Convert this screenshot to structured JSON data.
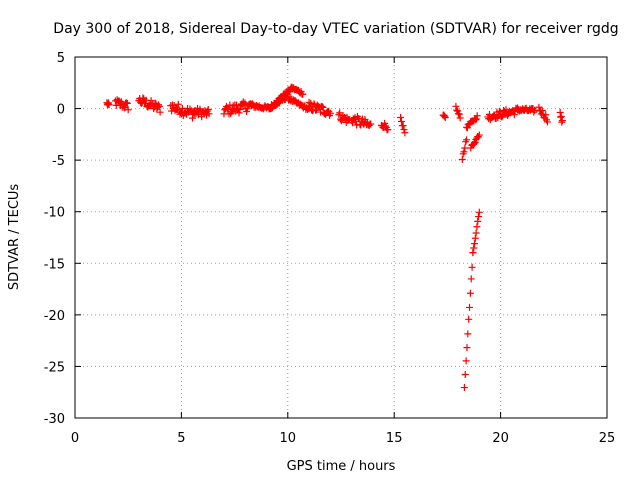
{
  "chart_data": {
    "type": "scatter",
    "title": "Day 300 of 2018, Sidereal Day-to-day VTEC variation (SDTVAR) for receiver rgdg",
    "xlabel": "GPS time / hours",
    "ylabel": "SDTVAR / TECUs",
    "xlim": [
      0,
      25
    ],
    "ylim": [
      -30,
      5
    ],
    "xticks": [
      0,
      5,
      10,
      15,
      20,
      25
    ],
    "yticks": [
      5,
      0,
      -5,
      -10,
      -15,
      -20,
      -25,
      -30
    ],
    "xtick_labels": [
      "0",
      "5",
      "10",
      "15",
      "20",
      "25"
    ],
    "ytick_labels": [
      "5",
      "0",
      "-5",
      "-10",
      "-15",
      "-20",
      "-25",
      "-30"
    ],
    "grid": true,
    "marker": "+",
    "marker_color": "#ff0000",
    "series": [
      {
        "name": "SDTVAR",
        "segments": [
          {
            "x0": 1.5,
            "x1": 1.6,
            "y0": 0.5,
            "y1": 0.3,
            "spread": 0.4
          },
          {
            "x0": 1.9,
            "x1": 2.5,
            "y0": 0.6,
            "y1": 0.2,
            "spread": 0.8
          },
          {
            "x0": 3.0,
            "x1": 4.0,
            "y0": 0.8,
            "y1": 0.0,
            "spread": 0.9
          },
          {
            "x0": 4.5,
            "x1": 5.6,
            "y0": 0.2,
            "y1": -0.5,
            "spread": 1.0
          },
          {
            "x0": 5.6,
            "x1": 6.3,
            "y0": -0.3,
            "y1": -0.5,
            "spread": 0.8
          },
          {
            "x0": 7.0,
            "x1": 8.3,
            "y0": -0.2,
            "y1": 0.3,
            "spread": 1.0
          },
          {
            "x0": 8.3,
            "x1": 9.2,
            "y0": 0.3,
            "y1": 0.0,
            "spread": 0.4
          },
          {
            "x0": 9.2,
            "x1": 10.2,
            "y0": 0.2,
            "y1": 2.0,
            "spread": 0.3
          },
          {
            "x0": 10.2,
            "x1": 10.7,
            "y0": 2.0,
            "y1": 1.5,
            "spread": 0.3
          },
          {
            "x0": 9.2,
            "x1": 10.0,
            "y0": 0.0,
            "y1": 1.2,
            "spread": 0.3
          },
          {
            "x0": 10.0,
            "x1": 11.0,
            "y0": 1.0,
            "y1": -0.1,
            "spread": 0.3
          },
          {
            "x0": 11.0,
            "x1": 12.0,
            "y0": 0.2,
            "y1": -0.3,
            "spread": 0.9
          },
          {
            "x0": 12.4,
            "x1": 12.9,
            "y0": -0.7,
            "y1": -1.2,
            "spread": 0.8
          },
          {
            "x0": 13.0,
            "x1": 13.9,
            "y0": -1.0,
            "y1": -1.7,
            "spread": 0.9
          },
          {
            "x0": 14.4,
            "x1": 14.7,
            "y0": -1.5,
            "y1": -1.8,
            "spread": 0.6
          },
          {
            "x0": 15.3,
            "x1": 15.5,
            "y0": -1.2,
            "y1": -2.5,
            "spread": 0.7
          },
          {
            "x0": 17.3,
            "x1": 17.4,
            "y0": -0.7,
            "y1": -0.8,
            "spread": 0.2
          },
          {
            "x0": 17.9,
            "x1": 18.1,
            "y0": 0.1,
            "y1": -0.9,
            "spread": 0.4
          },
          {
            "x0": 18.2,
            "x1": 18.4,
            "y0": -4.8,
            "y1": -3.0,
            "spread": 0.3
          },
          {
            "x0": 18.4,
            "x1": 18.9,
            "y0": -1.8,
            "y1": -0.8,
            "spread": 0.3
          },
          {
            "x0": 18.6,
            "x1": 19.0,
            "y0": -3.8,
            "y1": -2.5,
            "spread": 0.3
          },
          {
            "x0": 18.3,
            "x1": 18.7,
            "y0": -27.0,
            "y1": -14.0,
            "spread": 0.2
          },
          {
            "x0": 18.7,
            "x1": 19.0,
            "y0": -14.0,
            "y1": -10.0,
            "spread": 0.2
          },
          {
            "x0": 19.4,
            "x1": 20.8,
            "y0": -0.8,
            "y1": -0.2,
            "spread": 0.7
          },
          {
            "x0": 20.8,
            "x1": 21.6,
            "y0": -0.1,
            "y1": -0.2,
            "spread": 0.4
          },
          {
            "x0": 21.8,
            "x1": 22.2,
            "y0": 0.0,
            "y1": -1.0,
            "spread": 0.6
          },
          {
            "x0": 22.8,
            "x1": 22.9,
            "y0": -0.5,
            "y1": -1.4,
            "spread": 0.5
          }
        ]
      }
    ]
  }
}
